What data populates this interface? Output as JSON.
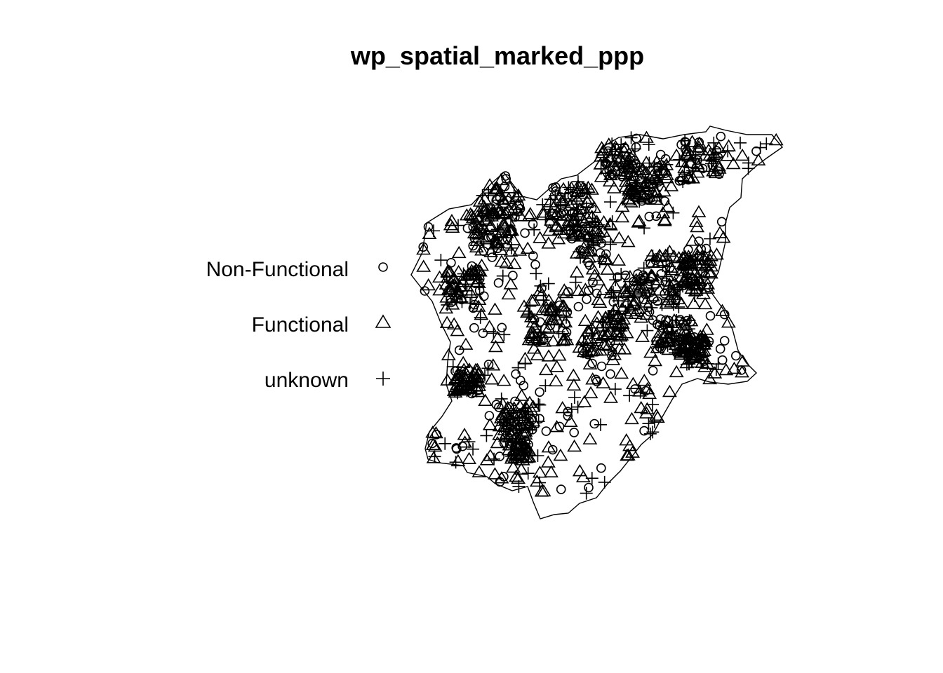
{
  "chart_data": {
    "type": "scatter",
    "title": "wp_spatial_marked_ppp",
    "xlabel": "",
    "ylabel": "",
    "axes": "none",
    "grid": false,
    "legend_placement": "left",
    "legend": [
      {
        "label": "Non-Functional",
        "symbol": "circle"
      },
      {
        "label": "Functional",
        "symbol": "triangle"
      },
      {
        "label": "unknown",
        "symbol": "plus"
      }
    ],
    "window": "irregular polygon boundary (study area)",
    "colors": {
      "marks": "#000000",
      "background": "#ffffff"
    },
    "note_points": "Thousands of overlapping marked points; individual coordinates not legible."
  }
}
